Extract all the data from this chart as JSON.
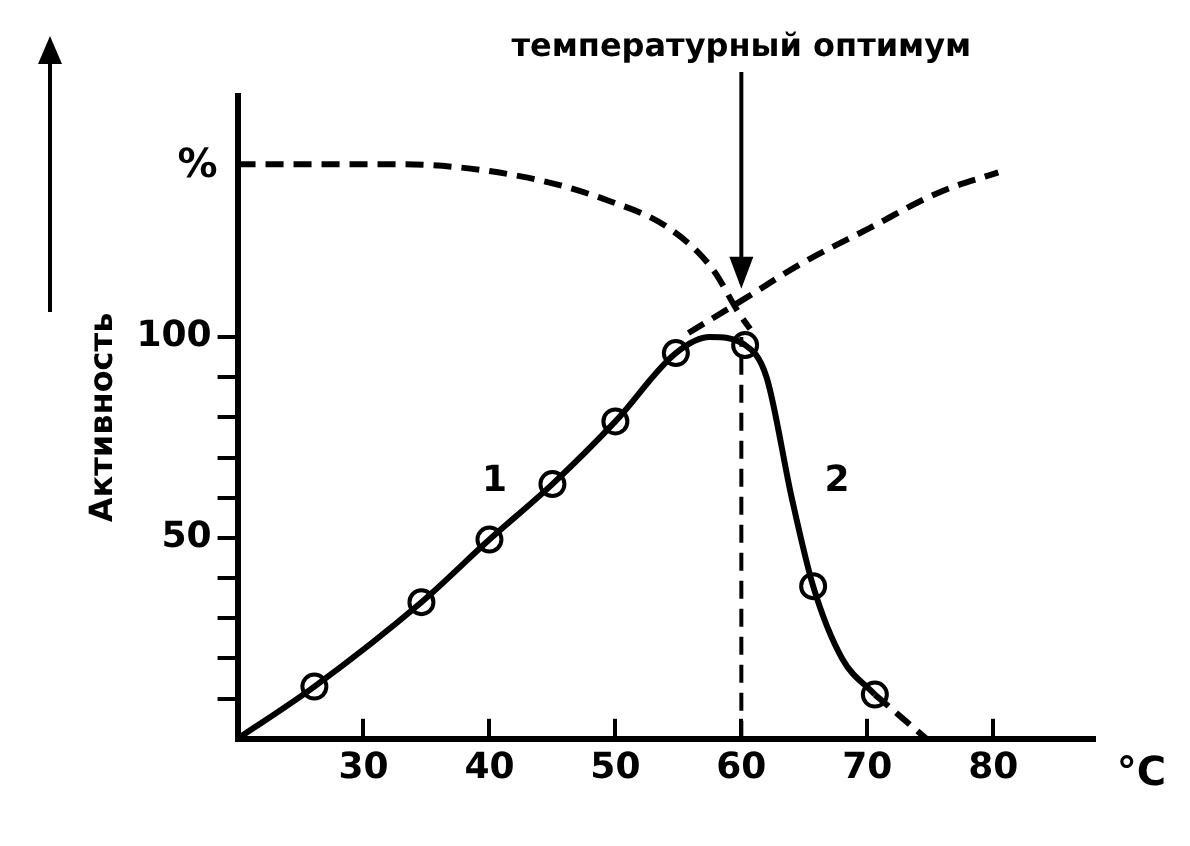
{
  "chart_data": {
    "type": "line",
    "xlabel": "°C",
    "ylabel": "Активность",
    "annotations": [
      "%",
      {
        "text": "температурный оптимум",
        "x": 60,
        "y": 112
      },
      "1",
      "2"
    ],
    "xlim": [
      20,
      88
    ],
    "ylim": [
      0,
      160
    ],
    "xticks": [
      30,
      40,
      50,
      60,
      70,
      80
    ],
    "yticks": [
      {
        "value": 10,
        "label": null
      },
      {
        "value": 20,
        "label": null
      },
      {
        "value": 30,
        "label": null
      },
      {
        "value": 40,
        "label": null
      },
      50,
      {
        "value": 60,
        "label": null
      },
      {
        "value": 70,
        "label": null
      },
      {
        "value": 80,
        "label": null
      },
      {
        "value": 90,
        "label": null
      },
      100
    ],
    "grid": false,
    "legend": false,
    "ref_lines": [
      {
        "axis": "x",
        "value": 60,
        "label": null,
        "color": "#000000",
        "line_style": "dashed"
      }
    ],
    "series": [
      {
        "color": "#000000",
        "marker": "none",
        "line_style": "solid",
        "x": [
          20,
          26.1,
          34.6,
          40,
          45,
          50,
          54.8,
          57.5,
          60.3,
          62,
          64,
          65.7,
          68,
          70.6
        ],
        "values": [
          0,
          13,
          34,
          49.6,
          63.4,
          79,
          96,
          100,
          98,
          90,
          60,
          38,
          20,
          11
        ]
      },
      {
        "color": "#000000",
        "marker": "none",
        "line_style": "dashed",
        "x": [
          70.6,
          74.7
        ],
        "values": [
          11,
          0
        ]
      },
      {
        "color": "#000000",
        "marker": "none",
        "line_style": "dashed",
        "x": [
          20,
          32.8,
          42.5,
          49.4,
          54.3,
          57.7,
          59.8,
          60.7
        ],
        "values": [
          143,
          143,
          140,
          134,
          127,
          117,
          106,
          102
        ]
      },
      {
        "color": "#000000",
        "marker": "none",
        "line_style": "dashed",
        "x": [
          55.8,
          60.5,
          64.6,
          70.1,
          75.7,
          80.4
        ],
        "values": [
          101,
          110,
          118,
          127,
          136,
          141
        ]
      },
      {
        "type": "scatter",
        "color": "#000000",
        "marker": "circle",
        "x": [
          26.1,
          34.6,
          40,
          45,
          50,
          54.8,
          60.3,
          65.7,
          70.6
        ],
        "values": [
          13,
          34,
          49.6,
          63.4,
          79,
          96,
          98,
          38,
          11
        ]
      }
    ]
  }
}
